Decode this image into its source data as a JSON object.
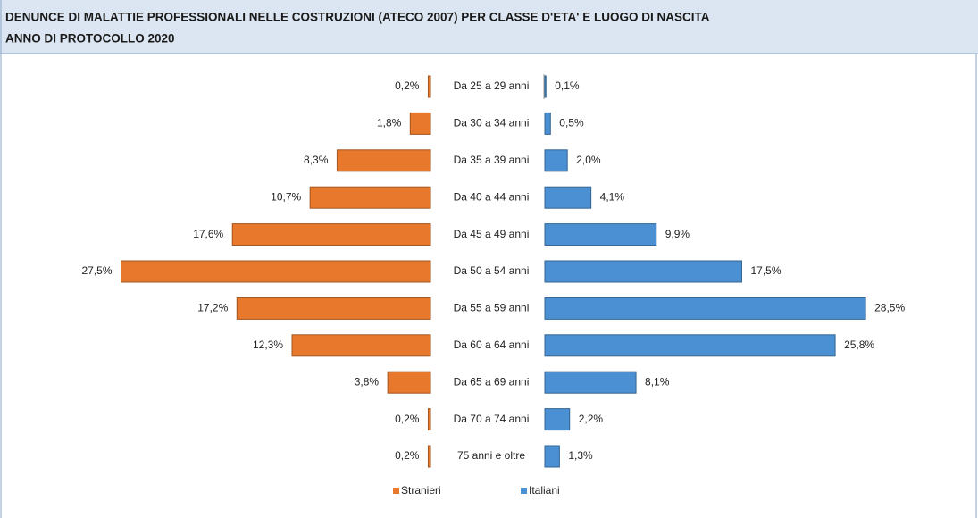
{
  "chart_data": {
    "type": "butterfly_bar",
    "title": "DENUNCE DI MALATTIE PROFESSIONALI NELLE COSTRUZIONI (ATECO 2007) PER CLASSE D'ETA' E LUOGO DI NASCITA",
    "subtitle": "ANNO DI PROTOCOLLO 2020",
    "categories": [
      "Da 25 a 29 anni",
      "Da 30 a 34 anni",
      "Da 35 a 39 anni",
      "Da 40 a 44 anni",
      "Da 45 a 49 anni",
      "Da 50 a 54 anni",
      "Da 55 a 59 anni",
      "Da 60 a 64 anni",
      "Da 65 a 69 anni",
      "Da 70 a 74 anni",
      "75 anni e oltre"
    ],
    "series": [
      {
        "name": "Stranieri",
        "color": "#e8792c",
        "side": "left",
        "values": [
          0.2,
          1.8,
          8.3,
          10.7,
          17.6,
          27.5,
          17.2,
          12.3,
          3.8,
          0.2,
          0.2
        ],
        "value_labels": [
          "0,2%",
          "1,8%",
          "8,3%",
          "10,7%",
          "17,6%",
          "27,5%",
          "17,2%",
          "12,3%",
          "3,8%",
          "0,2%",
          "0,2%"
        ]
      },
      {
        "name": "Italiani",
        "color": "#4a90d2",
        "side": "right",
        "values": [
          0.1,
          0.5,
          2.0,
          4.1,
          9.9,
          17.5,
          28.5,
          25.8,
          8.1,
          2.2,
          1.3
        ],
        "value_labels": [
          "0,1%",
          "0,5%",
          "2,0%",
          "4,1%",
          "9,9%",
          "17,5%",
          "28,5%",
          "25,8%",
          "8,1%",
          "2,2%",
          "1,3%"
        ]
      }
    ],
    "legend": "bottom"
  }
}
